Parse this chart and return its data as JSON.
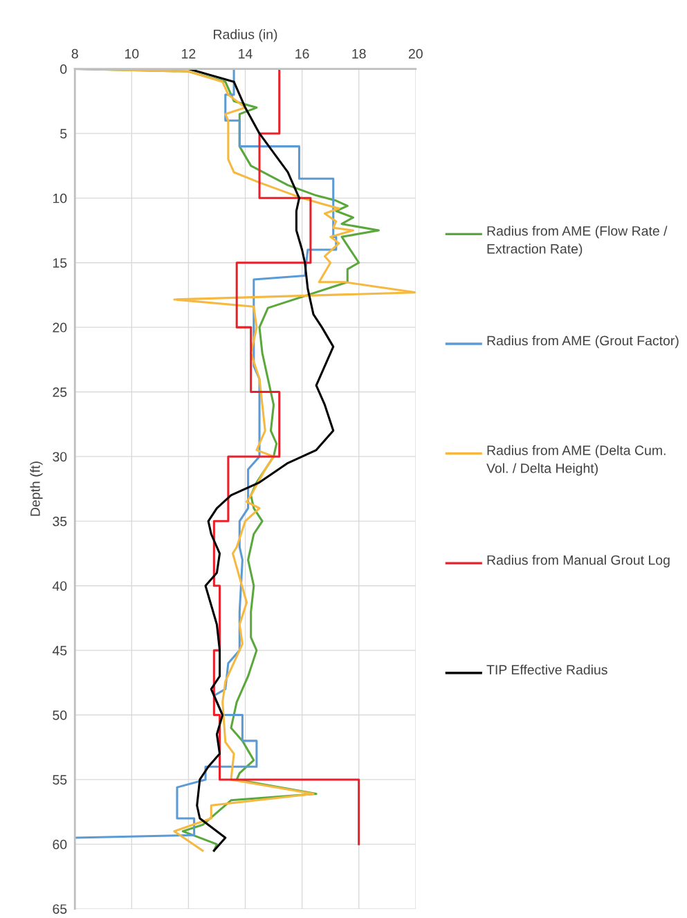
{
  "chart_data": {
    "type": "line",
    "xlabel": "Radius (in)",
    "ylabel": "Depth (ft)",
    "xlim": [
      8,
      20
    ],
    "xticks": [
      8,
      10,
      12,
      14,
      16,
      18,
      20
    ],
    "ylim": [
      65,
      0
    ],
    "yticks": [
      0,
      5,
      10,
      15,
      20,
      25,
      30,
      35,
      40,
      45,
      50,
      55,
      60,
      65
    ],
    "grid": true,
    "legend": "right",
    "marker": "none",
    "line_style": "solid",
    "series": [
      {
        "name": "Radius from AME (Flow Rate / Extraction Rate)",
        "color": "#5aa83c",
        "x": [
          8,
          12,
          13.3,
          13.6,
          14.4,
          13.8,
          13.8,
          14.2,
          15.5,
          16.5,
          17.2,
          17.6,
          17.2,
          17.8,
          17.4,
          18.7,
          17.4,
          17.7,
          18,
          17.6,
          17.6,
          14.8,
          14.5,
          14.6,
          14.8,
          15,
          14.9,
          15.1,
          15,
          14.4,
          14.2,
          14.3,
          14.6,
          14.3,
          14.1,
          14.3,
          14.2,
          14.2,
          14.4,
          14.1,
          13.9,
          13.7,
          13.6,
          13.5,
          13.9,
          14.3,
          13.8,
          13.7,
          16.5,
          13.5,
          12.5,
          11.8,
          13,
          12.9
        ],
        "values": [
          0,
          0.2,
          1,
          2.5,
          3,
          3.5,
          6,
          7.5,
          9,
          9.8,
          10.2,
          10.6,
          11,
          11.5,
          12,
          12.5,
          13,
          14,
          15,
          15.5,
          16.5,
          18.5,
          20,
          22,
          24,
          26,
          28,
          29,
          30,
          32,
          33,
          34,
          35,
          36,
          38,
          40,
          42,
          44,
          45,
          47,
          48,
          49,
          50,
          51,
          52,
          53.5,
          54.5,
          55,
          56.1,
          56.6,
          58.5,
          59,
          60,
          60.5
        ]
      },
      {
        "name": "Radius from AME (Grout Factor)",
        "color": "#5b9bd5",
        "x": [
          13.6,
          13.6,
          13.3,
          13.3,
          13.8,
          13.8,
          15.9,
          15.9,
          17.1,
          17.1,
          17.2,
          17.2,
          16.2,
          16.1,
          14.3,
          14.3,
          14.5,
          14.5,
          14.5,
          14.1,
          14.1,
          13.8,
          13.8,
          13.9,
          13.8,
          13.8,
          13.4,
          13.3,
          12.9,
          13.2,
          13.9,
          13.9,
          14.4,
          14.4,
          12.6,
          12.6,
          11.6,
          11.6,
          12.2,
          12.2,
          8
        ],
        "values": [
          0,
          2,
          2,
          4,
          4,
          6,
          6,
          8.5,
          8.5,
          13,
          13,
          14,
          14,
          16,
          16.3,
          23,
          24,
          28,
          30,
          31,
          34,
          35,
          37,
          38,
          42,
          45,
          46,
          48,
          48.5,
          50,
          50,
          52,
          52,
          54,
          54,
          55,
          55.6,
          58,
          58,
          59.3,
          59.5
        ]
      },
      {
        "name": "Radius from AME (Delta Cum. Vol. / Delta Height)",
        "color": "#f5b942",
        "x": [
          8,
          12,
          13.2,
          13.4,
          14,
          13.3,
          13.4,
          13.4,
          13.6,
          14.5,
          16,
          16.8,
          17.3,
          16.8,
          17.2,
          17.1,
          17.8,
          17,
          17.3,
          16.8,
          17,
          16.6,
          17.5,
          20,
          11.5,
          14.3,
          14.4,
          14.2,
          14.5,
          14.6,
          14.7,
          14.4,
          15,
          14.7,
          14.2,
          14.05,
          14.5,
          14,
          13.7,
          13.56,
          14.05,
          13.8,
          13.9,
          13.3,
          13.2,
          13.3,
          13.6,
          13.5,
          16.4,
          12.8,
          12.8,
          11.5,
          12.5
        ],
        "values": [
          0,
          0.2,
          1,
          2,
          3,
          3.5,
          4,
          7,
          8,
          8.8,
          10,
          10.5,
          10.8,
          11.2,
          11.8,
          12.3,
          12.5,
          13,
          13.5,
          14.5,
          15,
          16.5,
          16.5,
          17.3,
          17.85,
          18.4,
          20,
          22,
          24,
          26,
          28,
          29.5,
          30,
          31,
          33,
          33.5,
          34,
          35,
          37,
          37.5,
          41.3,
          43,
          44.5,
          47.4,
          49,
          52.1,
          53,
          55,
          56.1,
          57,
          58,
          59,
          60.5
        ]
      },
      {
        "name": "Radius from Manual Grout Log",
        "color": "#e8202a",
        "x": [
          15.2,
          15.2,
          14.5,
          14.5,
          16.3,
          16.3,
          13.7,
          13.7,
          14.2,
          14.2,
          15.2,
          15.2,
          13.4,
          13.4,
          12.9,
          12.9,
          13.1,
          13.1,
          12.9,
          12.9,
          13.1,
          13.1,
          18,
          18
        ],
        "values": [
          0,
          5,
          5,
          10,
          10,
          15,
          15,
          20,
          20,
          25,
          25,
          30,
          30,
          35,
          35,
          40,
          40,
          45,
          45,
          50,
          50,
          55,
          55,
          60
        ]
      },
      {
        "name": "TIP Effective Radius",
        "color": "#000000",
        "x": [
          12,
          13.6,
          14,
          14.5,
          15.5,
          15.9,
          15.8,
          15.8,
          16,
          16.1,
          16.2,
          16.4,
          16.7,
          17.1,
          16.8,
          16.5,
          16.8,
          17.1,
          16.5,
          15.5,
          14.5,
          13.5,
          13,
          12.7,
          12.8,
          13.1,
          13,
          12.6,
          12.8,
          13,
          13.1,
          13.1,
          12.8,
          13,
          13.2,
          13,
          13.1,
          12.7,
          12.4,
          12.3,
          12.4,
          13.3,
          12.9
        ],
        "values": [
          0,
          1,
          3,
          5,
          8,
          10,
          11,
          12.5,
          14,
          15,
          17,
          19,
          20,
          21.5,
          23,
          24.5,
          26,
          28,
          29.5,
          30.5,
          32,
          33,
          34,
          35,
          36,
          37.5,
          39,
          40,
          41.5,
          43,
          45,
          47,
          48,
          49,
          50,
          51.5,
          53,
          54,
          55,
          57,
          58,
          59.5,
          60.5
        ]
      }
    ]
  }
}
